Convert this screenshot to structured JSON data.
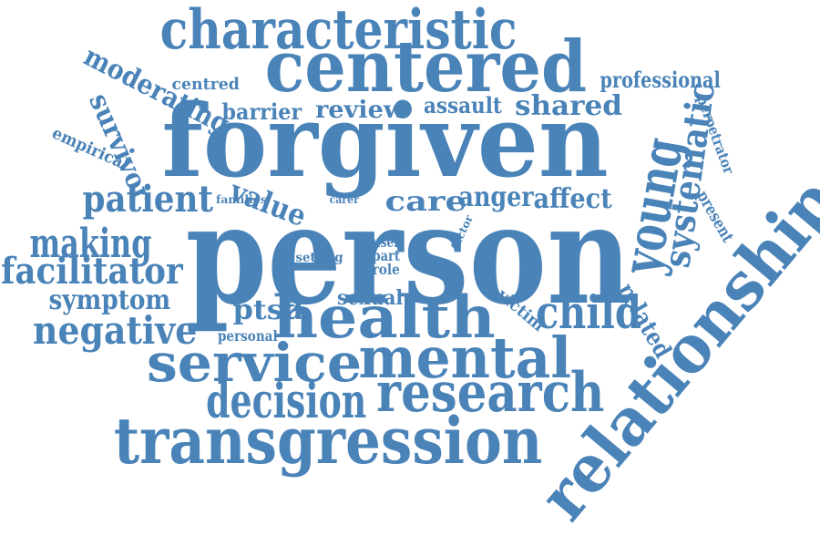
{
  "colors": {
    "word": "#4a83b8",
    "background": "#ffffff"
  },
  "words": {
    "characteristic": "characteristic",
    "centered": "centered",
    "forgiven": "forgiven",
    "person": "person",
    "relationship": "relationship",
    "transgression": "transgression",
    "mental": "mental",
    "service": "service",
    "health": "health",
    "research": "research",
    "decision": "decision",
    "young": "young",
    "systematic": "systematic",
    "child": "child",
    "negative": "negative",
    "making": "making",
    "facilitator": "facilitator",
    "patient": "patient",
    "symptom": "symptom",
    "ptsd": "ptsd",
    "moderating": "moderating",
    "survivor": "survivor",
    "empirical": "empirical",
    "centred": "centred",
    "barrier": "barrier",
    "review": "review",
    "assault": "assault",
    "shared": "shared",
    "professional": "professional",
    "perpetrator": "perpetrator",
    "present": "present",
    "related": "related",
    "value": "value",
    "families": "families",
    "carer": "carer",
    "care": "care",
    "anger": "anger",
    "affect": "affect",
    "setting": "setting",
    "user": "user",
    "part": "part",
    "role": "role",
    "factor": "factor",
    "sexual": "sexual",
    "victim": "victim",
    "personal": "personal"
  }
}
